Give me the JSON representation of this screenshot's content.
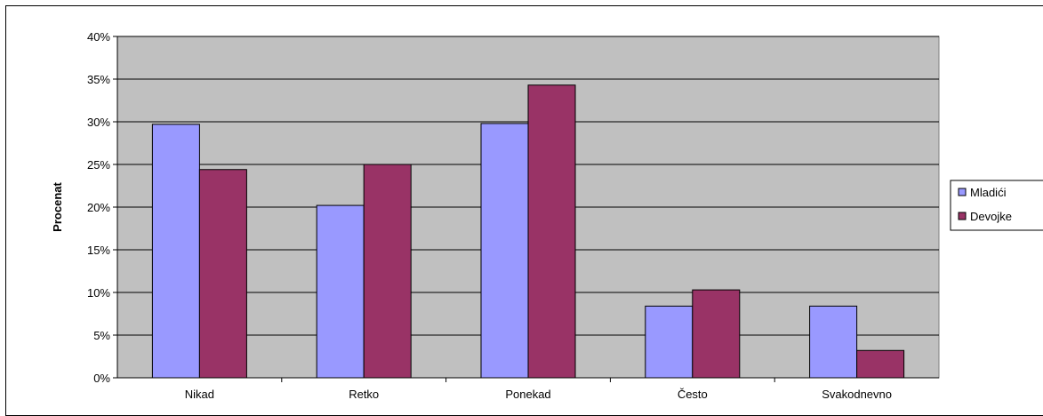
{
  "chart_data": {
    "type": "bar",
    "categories": [
      "Nikad",
      "Retko",
      "Ponekad",
      "Često",
      "Svakodnevno"
    ],
    "series": [
      {
        "name": "Mladići",
        "values": [
          29.7,
          20.2,
          29.8,
          8.4,
          8.4
        ],
        "color": "#9999ff"
      },
      {
        "name": "Devojke",
        "values": [
          24.4,
          25.0,
          34.3,
          10.3,
          3.2
        ],
        "color": "#993366"
      }
    ],
    "ylabel": "Procenat",
    "ylim": [
      0,
      40
    ],
    "yticks": [
      "0%",
      "5%",
      "10%",
      "15%",
      "20%",
      "25%",
      "30%",
      "35%",
      "40%"
    ],
    "plot_background": "#c0c0c0",
    "grid": true,
    "legend_position": "right"
  }
}
